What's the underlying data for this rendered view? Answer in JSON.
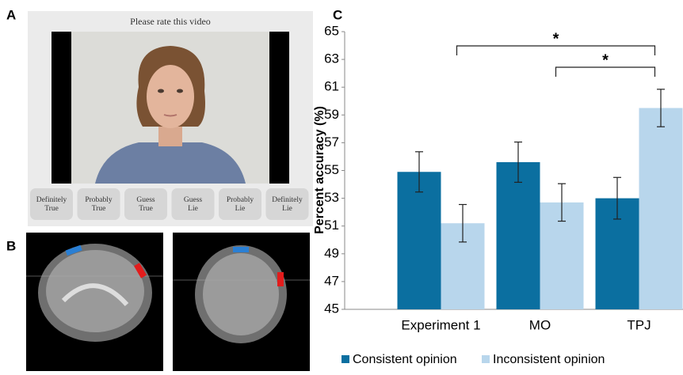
{
  "panel_labels": [
    "A",
    "B",
    "C"
  ],
  "rating_ui": {
    "title": "Please rate this video",
    "buttons": [
      [
        "Definitely",
        "True"
      ],
      [
        "Probably",
        "True"
      ],
      [
        "Guess",
        "True"
      ],
      [
        "Guess",
        "Lie"
      ],
      [
        "Probably",
        "Lie"
      ],
      [
        "Definitely",
        "Lie"
      ]
    ]
  },
  "chart_data": {
    "type": "bar",
    "y_label": "Percent accuracy (%)",
    "categories": [
      "Experiment 1",
      "MO",
      "TPJ"
    ],
    "series": [
      {
        "name": "Consistent opinion",
        "color": "#0b6fa0",
        "values": [
          54.9,
          55.6,
          53.0
        ],
        "errors": [
          1.45,
          1.45,
          1.5
        ]
      },
      {
        "name": "Inconsistent opinion",
        "color": "#b8d6ec",
        "values": [
          51.2,
          52.7,
          59.5
        ],
        "errors": [
          1.35,
          1.35,
          1.35
        ]
      }
    ],
    "ylim": [
      45,
      65
    ],
    "yticks": [
      45,
      47,
      49,
      51,
      53,
      55,
      57,
      59,
      61,
      63,
      65
    ],
    "annotations": [
      "*",
      "*"
    ],
    "legend": "bottom"
  }
}
